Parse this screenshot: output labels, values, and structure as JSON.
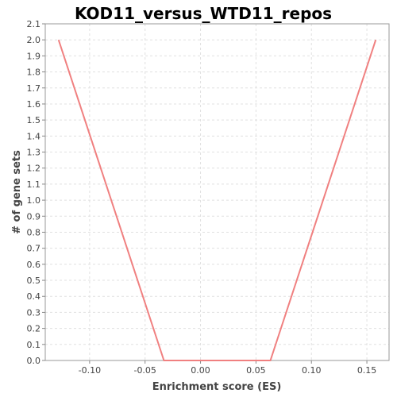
{
  "chart_data": {
    "type": "line",
    "title": "KOD11_versus_WTD11_repos",
    "xlabel": "Enrichment score (ES)",
    "ylabel": "# of gene sets",
    "xlim": [
      -0.14,
      0.17
    ],
    "ylim": [
      0.0,
      2.1
    ],
    "x_ticks": [
      -0.1,
      -0.05,
      0.0,
      0.05,
      0.1,
      0.15
    ],
    "x_tick_labels": [
      "-0.10",
      "-0.05",
      "0.00",
      "0.05",
      "0.10",
      "0.15"
    ],
    "y_ticks": [
      0.0,
      0.1,
      0.2,
      0.3,
      0.4,
      0.5,
      0.6,
      0.7,
      0.8,
      0.9,
      1.0,
      1.1,
      1.2,
      1.3,
      1.4,
      1.5,
      1.6,
      1.7,
      1.8,
      1.9,
      2.0,
      2.1
    ],
    "y_tick_labels": [
      "0.0",
      "0.1",
      "0.2",
      "0.3",
      "0.4",
      "0.5",
      "0.6",
      "0.7",
      "0.8",
      "0.9",
      "1.0",
      "1.1",
      "1.2",
      "1.3",
      "1.4",
      "1.5",
      "1.6",
      "1.7",
      "1.8",
      "1.9",
      "2.0",
      "2.1"
    ],
    "grid": true,
    "series": [
      {
        "x": [
          -0.128,
          -0.033,
          0.063,
          0.158
        ],
        "y": [
          2.0,
          0.0,
          0.0,
          2.0
        ],
        "color": "#f08080"
      }
    ]
  }
}
